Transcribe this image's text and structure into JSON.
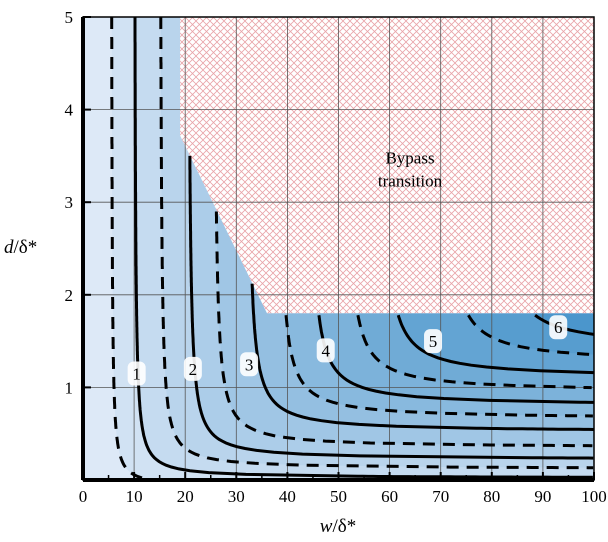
{
  "chart_data": {
    "type": "contour",
    "title": "",
    "xlabel_main": "w",
    "xlabel_unit": "/δ*",
    "ylabel_main": "d",
    "ylabel_unit": "/δ*",
    "xlim": [
      0,
      100
    ],
    "ylim": [
      0,
      5
    ],
    "xticks": [
      0,
      10,
      20,
      30,
      40,
      50,
      60,
      70,
      80,
      90,
      100
    ],
    "yticks": [
      1,
      2,
      3,
      4,
      5
    ],
    "grid": true,
    "region_label_line1": "Bypass",
    "region_label_line2": "transition",
    "bypass_region_boundary": [
      [
        19,
        5
      ],
      [
        19,
        3.72
      ],
      [
        36,
        1.8
      ],
      [
        100,
        1.8
      ],
      [
        100,
        5
      ]
    ],
    "contour_labels": [
      {
        "text": "1",
        "x": 10.5,
        "y": 1.15
      },
      {
        "text": "2",
        "x": 21.5,
        "y": 1.2
      },
      {
        "text": "3",
        "x": 32.5,
        "y": 1.25
      },
      {
        "text": "4",
        "x": 47.5,
        "y": 1.4
      },
      {
        "text": "5",
        "x": 68.5,
        "y": 1.5
      },
      {
        "text": "6",
        "x": 93,
        "y": 1.65
      }
    ],
    "solid_levels": [
      {
        "level": 1,
        "vx": 10,
        "ha": 0.02
      },
      {
        "level": 2,
        "vx": 20.5,
        "ha": 0.22
      },
      {
        "level": 3,
        "vx": 32,
        "ha": 0.52
      },
      {
        "level": 4,
        "vx": 44,
        "ha": 0.8
      },
      {
        "level": 5,
        "vx": 58,
        "ha": 1.1
      },
      {
        "level": 6,
        "vx": 80,
        "ha": 1.42
      }
    ],
    "dashed_levels": [
      {
        "level": 0.5,
        "vx": 5.5,
        "ha": -0.08
      },
      {
        "level": 1.5,
        "vx": 15,
        "ha": 0.12
      },
      {
        "level": 2.5,
        "vx": 25.5,
        "ha": 0.35
      },
      {
        "level": 3.5,
        "vx": 38,
        "ha": 0.66
      },
      {
        "level": 4.5,
        "vx": 51,
        "ha": 0.95
      },
      {
        "level": 5.5,
        "vx": 70,
        "ha": 1.26
      },
      {
        "level": 6.5,
        "vx": 96,
        "ha": 1.58
      }
    ],
    "colors": {
      "fill_low": "#dde9f7",
      "fill_high": "#3f8fc8",
      "hatch": "#e8a3a8",
      "grid": "#555555",
      "contour": "#000000"
    }
  }
}
